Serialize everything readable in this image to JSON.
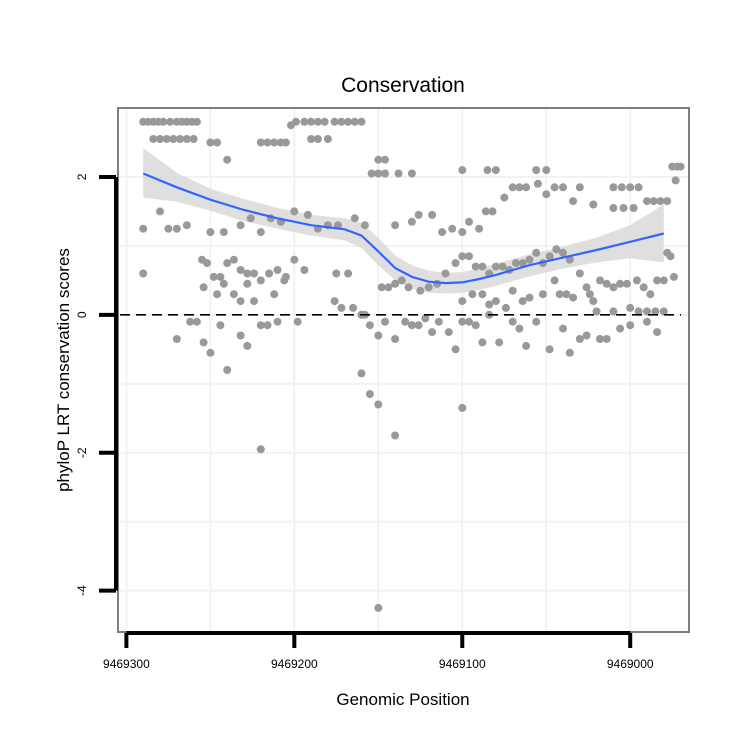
{
  "chart_data": {
    "type": "scatter",
    "title": "Conservation",
    "xlabel": "Genomic Position",
    "ylabel": "phyloP LRT conservation scores",
    "x_reversed": true,
    "xlim": [
      9469305,
      9468965
    ],
    "ylim": [
      -4.6,
      3.0
    ],
    "x_ticks": [
      9469300,
      9469200,
      9469100,
      9469000
    ],
    "x_tick_labels": [
      "9469300",
      "9469200",
      "9469100",
      "9469000"
    ],
    "x_minor_grid": [
      9469250,
      9469150,
      9469050
    ],
    "y_ticks": [
      2,
      0,
      -2,
      -4
    ],
    "y_tick_labels": [
      "2",
      "0",
      "-2",
      "-4"
    ],
    "y_minor_grid": [
      1,
      -1,
      -3
    ],
    "reference_line": {
      "y": 0,
      "style": "dashed",
      "color": "#000000"
    },
    "grid": true,
    "colors": {
      "points": "#999999",
      "smooth_line": "#3366ff",
      "confidence_band": "#d9d9d9",
      "panel_border": "#7f7f7f",
      "grid": "#f2f2f2"
    },
    "smooth": {
      "x": [
        9469290,
        9469270,
        9469250,
        9469230,
        9469210,
        9469190,
        9469170,
        9469160,
        9469150,
        9469140,
        9469130,
        9469120,
        9469110,
        9469100,
        9469090,
        9469080,
        9469070,
        9469060,
        9469040,
        9469020,
        9469000,
        9468980
      ],
      "y": [
        2.05,
        1.85,
        1.67,
        1.52,
        1.4,
        1.3,
        1.24,
        1.15,
        0.92,
        0.68,
        0.55,
        0.48,
        0.46,
        0.47,
        0.52,
        0.58,
        0.65,
        0.72,
        0.83,
        0.94,
        1.06,
        1.18
      ],
      "upper": [
        2.42,
        2.06,
        1.83,
        1.68,
        1.55,
        1.45,
        1.4,
        1.33,
        1.12,
        0.86,
        0.72,
        0.64,
        0.61,
        0.62,
        0.68,
        0.74,
        0.81,
        0.88,
        0.99,
        1.12,
        1.3,
        1.6
      ],
      "lower": [
        1.7,
        1.64,
        1.51,
        1.36,
        1.25,
        1.15,
        1.08,
        0.97,
        0.72,
        0.5,
        0.38,
        0.32,
        0.31,
        0.32,
        0.36,
        0.42,
        0.49,
        0.56,
        0.67,
        0.76,
        0.82,
        0.76
      ]
    },
    "points": [
      [
        9469290,
        2.8
      ],
      [
        9469287,
        2.8
      ],
      [
        9469284,
        2.8
      ],
      [
        9469281,
        2.8
      ],
      [
        9469278,
        2.8
      ],
      [
        9469274,
        2.8
      ],
      [
        9469270,
        2.8
      ],
      [
        9469267,
        2.8
      ],
      [
        9469264,
        2.8
      ],
      [
        9469261,
        2.8
      ],
      [
        9469258,
        2.8
      ],
      [
        9469284,
        2.55
      ],
      [
        9469280,
        2.55
      ],
      [
        9469276,
        2.55
      ],
      [
        9469272,
        2.55
      ],
      [
        9469268,
        2.55
      ],
      [
        9469264,
        2.55
      ],
      [
        9469260,
        2.55
      ],
      [
        9469250,
        2.5
      ],
      [
        9469246,
        2.5
      ],
      [
        9469240,
        2.25
      ],
      [
        9469220,
        2.5
      ],
      [
        9469216,
        2.5
      ],
      [
        9469212,
        2.5
      ],
      [
        9469208,
        2.5
      ],
      [
        9469205,
        2.5
      ],
      [
        9469190,
        2.55
      ],
      [
        9469186,
        2.55
      ],
      [
        9469180,
        2.55
      ],
      [
        9469202,
        2.75
      ],
      [
        9469199,
        2.8
      ],
      [
        9469194,
        2.8
      ],
      [
        9469190,
        2.8
      ],
      [
        9469186,
        2.8
      ],
      [
        9469182,
        2.8
      ],
      [
        9469176,
        2.8
      ],
      [
        9469172,
        2.8
      ],
      [
        9469168,
        2.8
      ],
      [
        9469164,
        2.8
      ],
      [
        9469160,
        2.8
      ],
      [
        9469150,
        2.25
      ],
      [
        9469146,
        2.25
      ],
      [
        9469154,
        2.05
      ],
      [
        9469150,
        2.05
      ],
      [
        9469146,
        2.05
      ],
      [
        9469138,
        2.05
      ],
      [
        9469130,
        2.05
      ],
      [
        9469100,
        2.1
      ],
      [
        9469085,
        2.1
      ],
      [
        9469080,
        2.1
      ],
      [
        9469056,
        2.1
      ],
      [
        9469050,
        2.1
      ],
      [
        9469070,
        1.85
      ],
      [
        9469066,
        1.85
      ],
      [
        9469062,
        1.85
      ],
      [
        9469055,
        1.9
      ],
      [
        9469045,
        1.85
      ],
      [
        9469040,
        1.85
      ],
      [
        9469030,
        1.85
      ],
      [
        9469010,
        1.85
      ],
      [
        9469005,
        1.85
      ],
      [
        9469000,
        1.85
      ],
      [
        9468995,
        1.85
      ],
      [
        9469075,
        1.7
      ],
      [
        9469050,
        1.75
      ],
      [
        9469034,
        1.65
      ],
      [
        9469022,
        1.6
      ],
      [
        9469010,
        1.55
      ],
      [
        9469004,
        1.55
      ],
      [
        9468998,
        1.55
      ],
      [
        9468990,
        1.65
      ],
      [
        9468986,
        1.65
      ],
      [
        9468982,
        1.65
      ],
      [
        9468978,
        1.65
      ],
      [
        9468975,
        2.15
      ],
      [
        9468972,
        2.15
      ],
      [
        9468970,
        2.15
      ],
      [
        9468973,
        1.95
      ],
      [
        9469290,
        1.25
      ],
      [
        9469280,
        1.5
      ],
      [
        9469270,
        1.25
      ],
      [
        9469264,
        1.3
      ],
      [
        9469250,
        1.2
      ],
      [
        9469242,
        1.2
      ],
      [
        9469232,
        1.3
      ],
      [
        9469226,
        1.4
      ],
      [
        9469220,
        1.2
      ],
      [
        9469214,
        1.4
      ],
      [
        9469208,
        1.35
      ],
      [
        9469200,
        1.5
      ],
      [
        9469192,
        1.45
      ],
      [
        9469186,
        1.25
      ],
      [
        9469180,
        1.3
      ],
      [
        9469174,
        1.3
      ],
      [
        9469164,
        1.4
      ],
      [
        9469158,
        1.3
      ],
      [
        9469140,
        1.3
      ],
      [
        9469130,
        1.35
      ],
      [
        9469126,
        1.45
      ],
      [
        9469118,
        1.45
      ],
      [
        9469112,
        1.2
      ],
      [
        9469106,
        1.25
      ],
      [
        9469100,
        1.2
      ],
      [
        9469096,
        1.35
      ],
      [
        9469090,
        1.25
      ],
      [
        9469086,
        1.5
      ],
      [
        9469082,
        1.5
      ],
      [
        9469290,
        0.6
      ],
      [
        9469275,
        1.25
      ],
      [
        9469255,
        0.8
      ],
      [
        9469252,
        0.75
      ],
      [
        9469248,
        0.55
      ],
      [
        9469244,
        0.55
      ],
      [
        9469240,
        0.75
      ],
      [
        9469236,
        0.8
      ],
      [
        9469232,
        0.65
      ],
      [
        9469228,
        0.6
      ],
      [
        9469224,
        0.6
      ],
      [
        9469220,
        0.5
      ],
      [
        9469215,
        0.6
      ],
      [
        9469210,
        0.65
      ],
      [
        9469205,
        0.55
      ],
      [
        9469200,
        0.8
      ],
      [
        9469194,
        0.65
      ],
      [
        9469254,
        0.4
      ],
      [
        9469246,
        0.3
      ],
      [
        9469242,
        0.45
      ],
      [
        9469236,
        0.3
      ],
      [
        9469232,
        0.2
      ],
      [
        9469228,
        0.45
      ],
      [
        9469224,
        0.2
      ],
      [
        9469212,
        0.3
      ],
      [
        9469206,
        0.5
      ],
      [
        9469175,
        0.6
      ],
      [
        9469168,
        0.6
      ],
      [
        9469176,
        0.2
      ],
      [
        9469172,
        0.1
      ],
      [
        9469165,
        0.1
      ],
      [
        9469160,
        0.0
      ],
      [
        9469158,
        0.0
      ],
      [
        9469148,
        0.4
      ],
      [
        9469144,
        0.4
      ],
      [
        9469140,
        0.45
      ],
      [
        9469136,
        0.5
      ],
      [
        9469132,
        0.4
      ],
      [
        9469125,
        0.35
      ],
      [
        9469120,
        0.4
      ],
      [
        9469115,
        0.45
      ],
      [
        9469110,
        0.6
      ],
      [
        9469104,
        0.75
      ],
      [
        9469100,
        0.85
      ],
      [
        9469096,
        0.85
      ],
      [
        9469092,
        0.7
      ],
      [
        9469088,
        0.7
      ],
      [
        9469084,
        0.6
      ],
      [
        9469080,
        0.7
      ],
      [
        9469076,
        0.7
      ],
      [
        9469072,
        0.65
      ],
      [
        9469068,
        0.75
      ],
      [
        9469064,
        0.75
      ],
      [
        9469060,
        0.8
      ],
      [
        9469056,
        0.9
      ],
      [
        9469052,
        0.75
      ],
      [
        9469048,
        0.85
      ],
      [
        9469044,
        0.95
      ],
      [
        9469040,
        0.9
      ],
      [
        9469036,
        0.8
      ],
      [
        9469100,
        0.2
      ],
      [
        9469094,
        0.3
      ],
      [
        9469088,
        0.3
      ],
      [
        9469084,
        0.15
      ],
      [
        9469080,
        0.2
      ],
      [
        9469074,
        0.1
      ],
      [
        9469070,
        0.35
      ],
      [
        9469064,
        0.2
      ],
      [
        9469060,
        0.25
      ],
      [
        9469052,
        0.3
      ],
      [
        9469045,
        0.5
      ],
      [
        9469042,
        0.3
      ],
      [
        9469038,
        0.3
      ],
      [
        9469034,
        0.25
      ],
      [
        9469030,
        0.6
      ],
      [
        9469026,
        0.4
      ],
      [
        9469024,
        0.3
      ],
      [
        9469022,
        0.2
      ],
      [
        9469018,
        0.5
      ],
      [
        9469014,
        0.45
      ],
      [
        9469010,
        0.4
      ],
      [
        9469006,
        0.45
      ],
      [
        9469002,
        0.45
      ],
      [
        9468996,
        0.5
      ],
      [
        9468992,
        0.4
      ],
      [
        9468988,
        0.3
      ],
      [
        9468984,
        0.5
      ],
      [
        9468980,
        0.5
      ],
      [
        9468978,
        0.9
      ],
      [
        9468976,
        0.85
      ],
      [
        9468974,
        0.55
      ],
      [
        9469000,
        0.1
      ],
      [
        9468995,
        0.05
      ],
      [
        9468990,
        0.05
      ],
      [
        9468985,
        0.05
      ],
      [
        9468980,
        0.05
      ],
      [
        9469020,
        0.05
      ],
      [
        9469010,
        0.05
      ],
      [
        9469270,
        -0.35
      ],
      [
        9469262,
        -0.1
      ],
      [
        9469258,
        -0.1
      ],
      [
        9469254,
        -0.4
      ],
      [
        9469250,
        -0.55
      ],
      [
        9469244,
        -0.15
      ],
      [
        9469240,
        -0.8
      ],
      [
        9469232,
        -0.3
      ],
      [
        9469228,
        -0.45
      ],
      [
        9469220,
        -0.15
      ],
      [
        9469216,
        -0.15
      ],
      [
        9469210,
        -0.1
      ],
      [
        9469198,
        -0.1
      ],
      [
        9469160,
        0.0
      ],
      [
        9469155,
        -0.15
      ],
      [
        9469150,
        -0.3
      ],
      [
        9469146,
        -0.1
      ],
      [
        9469140,
        -0.35
      ],
      [
        9469134,
        -0.1
      ],
      [
        9469130,
        -0.15
      ],
      [
        9469126,
        -0.15
      ],
      [
        9469122,
        -0.05
      ],
      [
        9469118,
        -0.25
      ],
      [
        9469114,
        -0.1
      ],
      [
        9469108,
        -0.25
      ],
      [
        9469104,
        -0.5
      ],
      [
        9469100,
        -0.1
      ],
      [
        9469096,
        -0.1
      ],
      [
        9469092,
        -0.15
      ],
      [
        9469088,
        -0.4
      ],
      [
        9469084,
        0.0
      ],
      [
        9469078,
        -0.4
      ],
      [
        9469070,
        -0.1
      ],
      [
        9469066,
        -0.2
      ],
      [
        9469062,
        -0.45
      ],
      [
        9469056,
        -0.1
      ],
      [
        9469048,
        -0.5
      ],
      [
        9469040,
        -0.2
      ],
      [
        9469036,
        -0.55
      ],
      [
        9469030,
        -0.35
      ],
      [
        9469026,
        -0.3
      ],
      [
        9469018,
        -0.35
      ],
      [
        9469014,
        -0.35
      ],
      [
        9469006,
        -0.2
      ],
      [
        9469000,
        -0.15
      ],
      [
        9468990,
        -0.1
      ],
      [
        9468984,
        -0.25
      ],
      [
        9469220,
        -1.95
      ],
      [
        9469160,
        -0.85
      ],
      [
        9469155,
        -1.15
      ],
      [
        9469150,
        -1.3
      ],
      [
        9469140,
        -1.75
      ],
      [
        9469100,
        -1.35
      ],
      [
        9469150,
        -4.25
      ]
    ]
  }
}
